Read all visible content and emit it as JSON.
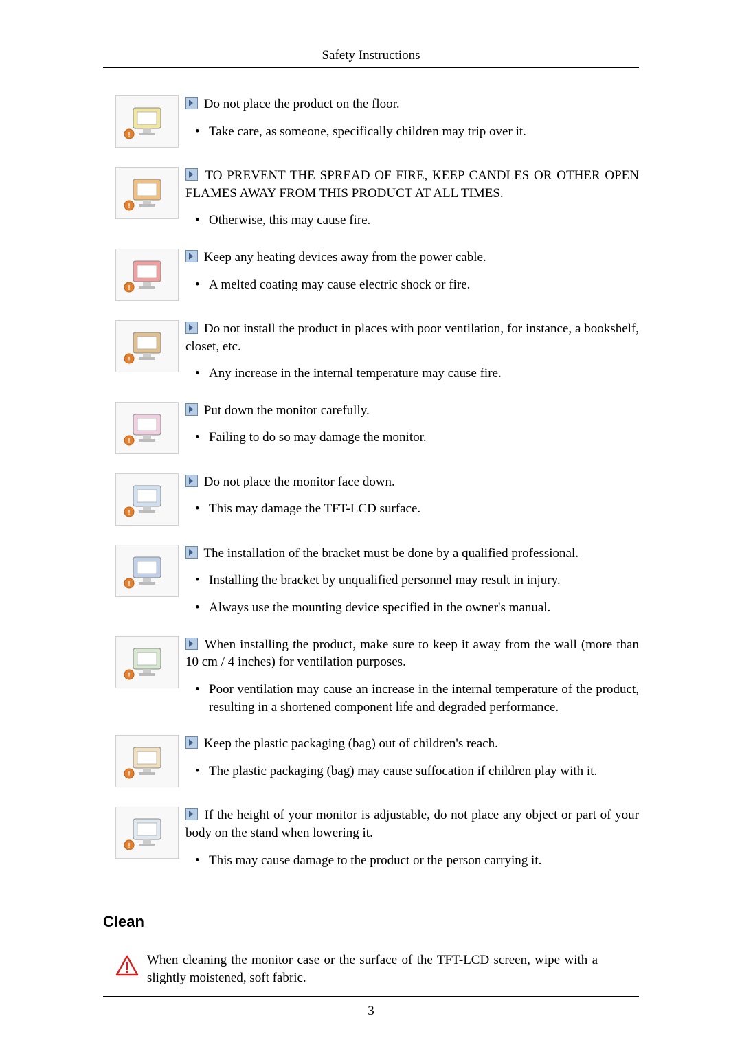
{
  "header": "Safety Instructions",
  "items": [
    {
      "iconColor": "#f0e6a0",
      "main": "Do not place the product on the floor.",
      "bullets": [
        "Take care, as someone, specifically children may trip over it."
      ]
    },
    {
      "iconColor": "#f0c080",
      "main": "TO PREVENT THE SPREAD OF FIRE, KEEP CANDLES OR OTHER OPEN FLAMES AWAY FROM THIS PRODUCT AT ALL TIMES.",
      "bullets": [
        "Otherwise, this may cause fire."
      ]
    },
    {
      "iconColor": "#f0a0a0",
      "main": "Keep any heating devices away from the power cable.",
      "bullets": [
        "A melted coating may cause electric shock or fire."
      ]
    },
    {
      "iconColor": "#e0c090",
      "main": "Do not install the product in places with poor ventilation, for instance, a bookshelf, closet, etc.",
      "bullets": [
        "Any increase in the internal temperature may cause fire."
      ]
    },
    {
      "iconColor": "#f0d0e0",
      "main": "Put down the monitor carefully.",
      "bullets": [
        "Failing to do so may damage the monitor."
      ]
    },
    {
      "iconColor": "#d0e0f0",
      "main": "Do not place the monitor face down.",
      "bullets": [
        "This may damage the TFT-LCD surface."
      ]
    },
    {
      "iconColor": "#c0d0e8",
      "main": "The installation of the bracket must be done by a qualified professional.",
      "bullets": [
        "Installing the bracket by unqualified personnel may result in injury.",
        "Always use the mounting device specified in the owner's manual."
      ]
    },
    {
      "iconColor": "#d8e8d0",
      "main": "When installing the product, make sure to keep it away from the wall (more than 10 cm / 4 inches) for ventilation purposes.",
      "bullets": [
        "Poor ventilation may cause an increase in the internal temperature of the product, resulting in a shortened component life and degraded performance."
      ]
    },
    {
      "iconColor": "#f0e0c0",
      "main": "Keep the plastic packaging (bag) out of children's reach.",
      "bullets": [
        "The plastic packaging (bag) may cause suffocation if children play with it."
      ]
    },
    {
      "iconColor": "#e0e8f0",
      "main": "If the height of your monitor is adjustable, do not place any object or part of your body on the stand when lowering it.",
      "bullets": [
        "This may cause damage to the product or the person carrying it."
      ]
    }
  ],
  "sectionTitle": "Clean",
  "cleanText": "When cleaning the monitor case or the surface of the TFT-LCD screen, wipe with a slightly moistened, soft fabric.",
  "pageNumber": "3",
  "colors": {
    "arrowBg": "#b8cce4",
    "arrowBorder": "#6688aa",
    "arrowTri": "#3a5f8a",
    "warnStroke": "#d02020"
  }
}
